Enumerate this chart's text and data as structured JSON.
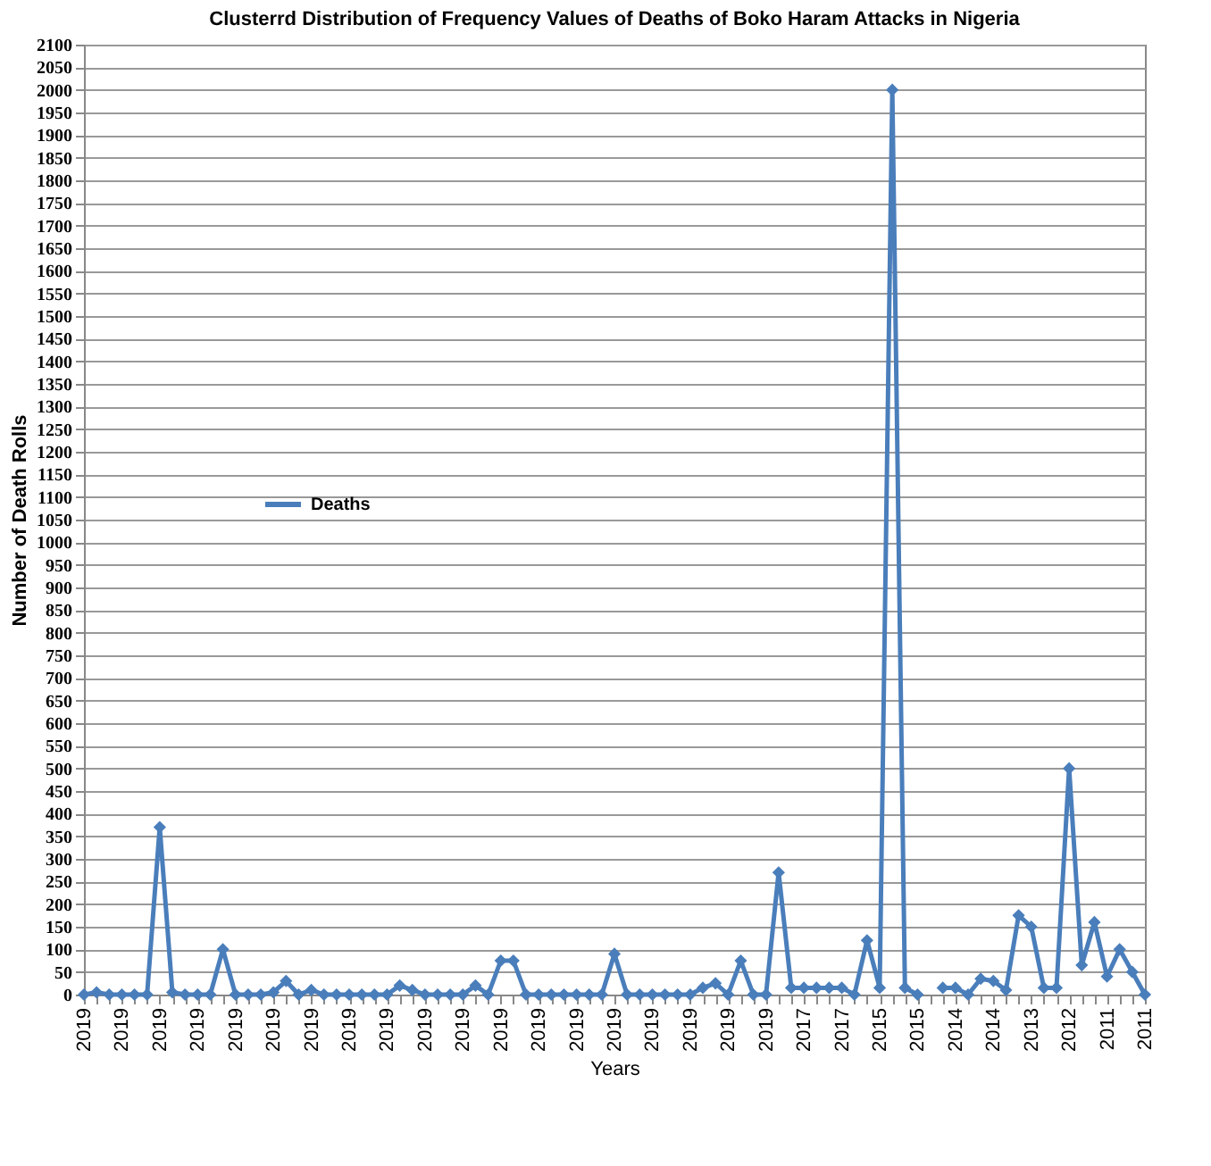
{
  "chart_data": {
    "type": "line",
    "title": "Clusterrd Distribution of Frequency Values of Deaths of Boko Haram Attacks in Nigeria",
    "xlabel": "Years",
    "ylabel": "Number of Death Rolls",
    "categories": [
      "2019",
      null,
      null,
      "2019",
      null,
      null,
      "2019",
      null,
      null,
      "2019",
      null,
      null,
      "2019",
      null,
      null,
      "2019",
      null,
      null,
      "2019",
      null,
      null,
      "2019",
      null,
      null,
      "2019",
      null,
      null,
      "2019",
      null,
      null,
      "2019",
      null,
      null,
      "2019",
      null,
      null,
      "2019",
      null,
      null,
      "2019",
      null,
      null,
      "2019",
      null,
      null,
      "2019",
      null,
      null,
      "2019",
      null,
      null,
      "2019",
      null,
      null,
      "2019",
      null,
      null,
      "2017",
      null,
      null,
      "2017",
      null,
      null,
      "2015",
      null,
      null,
      "2015",
      null,
      null,
      "2014",
      null,
      null,
      "2014",
      null,
      null,
      "2013",
      null,
      null,
      "2012",
      null,
      null,
      "2011",
      null,
      null,
      "2011"
    ],
    "series": [
      {
        "name": "Deaths",
        "color": "#4a7ebb",
        "values": [
          0,
          5,
          0,
          0,
          0,
          0,
          370,
          5,
          0,
          0,
          0,
          100,
          0,
          0,
          0,
          5,
          30,
          0,
          10,
          0,
          0,
          0,
          0,
          0,
          0,
          20,
          10,
          0,
          0,
          0,
          0,
          20,
          0,
          75,
          75,
          0,
          0,
          0,
          0,
          0,
          0,
          0,
          90,
          0,
          0,
          0,
          0,
          0,
          0,
          15,
          25,
          0,
          75,
          0,
          0,
          270,
          15,
          15,
          15,
          15,
          15,
          0,
          120,
          15,
          2000,
          15,
          0,
          null,
          15,
          15,
          0,
          35,
          30,
          10,
          175,
          150,
          15,
          15,
          500,
          65,
          160,
          40,
          100,
          50,
          0
        ]
      }
    ],
    "ylim": [
      0,
      2100
    ],
    "yticks": [
      0,
      50,
      100,
      150,
      200,
      250,
      300,
      350,
      400,
      450,
      500,
      550,
      600,
      650,
      700,
      750,
      800,
      850,
      900,
      950,
      1000,
      1050,
      1100,
      1150,
      1200,
      1250,
      1300,
      1350,
      1400,
      1450,
      1500,
      1550,
      1600,
      1650,
      1700,
      1750,
      1800,
      1850,
      1900,
      1950,
      2000,
      2050,
      2100
    ],
    "grid": "y",
    "legend": "left",
    "marker": "diamond",
    "line_style": "solid"
  }
}
